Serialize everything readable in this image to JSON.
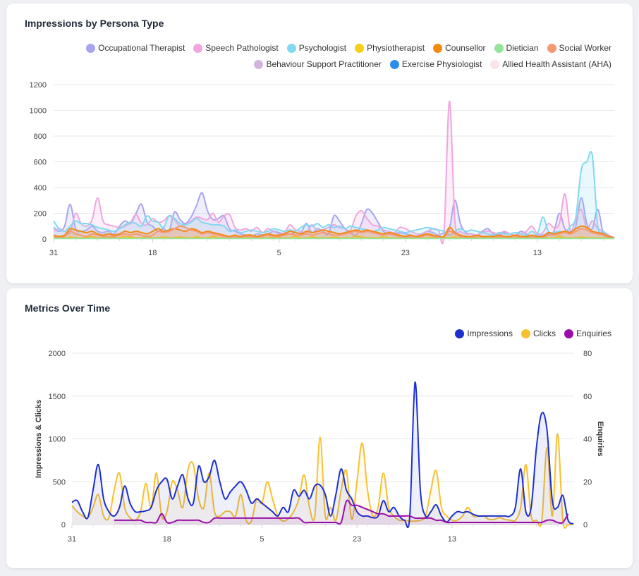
{
  "card1": {
    "title": "Impressions by Persona Type",
    "legend": [
      {
        "label": "Occupational Therapist",
        "color": "#a9a4ef"
      },
      {
        "label": "Speech Pathologist",
        "color": "#f0a6de"
      },
      {
        "label": "Psychologist",
        "color": "#82d8f1"
      },
      {
        "label": "Physiotherapist",
        "color": "#f6cf1a"
      },
      {
        "label": "Counsellor",
        "color": "#f38a10"
      },
      {
        "label": "Dietician",
        "color": "#94e59a"
      },
      {
        "label": "Social Worker",
        "color": "#f69873"
      },
      {
        "label": "Behaviour Support Practitioner",
        "color": "#d4b3df"
      },
      {
        "label": "Exercise Physiologist",
        "color": "#2e8de6"
      },
      {
        "label": "Allied Health Assistant (AHA)",
        "color": "#fce4e6"
      }
    ]
  },
  "card2": {
    "title": "Metrics Over Time",
    "legend": [
      {
        "label": "Impressions",
        "color": "#1d30d2"
      },
      {
        "label": "Clicks",
        "color": "#f7c131"
      },
      {
        "label": "Enquiries",
        "color": "#9b0ca8"
      }
    ]
  },
  "chart_data": [
    {
      "type": "area",
      "title": "Impressions by Persona Type",
      "x_ticks": [
        "31",
        "18",
        "5",
        "23",
        "13"
      ],
      "x_tick_index": [
        0,
        18,
        41,
        64,
        88
      ],
      "y_ticks": [
        0,
        200,
        400,
        600,
        800,
        1000,
        1200
      ],
      "ylim": [
        0,
        1200
      ],
      "grid": true,
      "legend_position": "top-right",
      "series": [
        {
          "name": "Occupational Therapist",
          "color": "#a9a4ef",
          "values": [
            90,
            60,
            100,
            270,
            80,
            60,
            70,
            100,
            60,
            50,
            60,
            40,
            100,
            140,
            120,
            200,
            270,
            130,
            100,
            60,
            80,
            60,
            210,
            150,
            120,
            170,
            260,
            360,
            220,
            150,
            160,
            180,
            80,
            60,
            40,
            30,
            20,
            40,
            30,
            40,
            60,
            50,
            40,
            40,
            50,
            50,
            120,
            50,
            80,
            60,
            40,
            180,
            140,
            80,
            50,
            30,
            120,
            230,
            200,
            130,
            60,
            40,
            40,
            50,
            40,
            30,
            20,
            40,
            60,
            50,
            30,
            50,
            80,
            300,
            120,
            50,
            40,
            30,
            60,
            80,
            40,
            30,
            50,
            40,
            30,
            60,
            40,
            20,
            30,
            30,
            40,
            60,
            200,
            80,
            60,
            100,
            320,
            120,
            80,
            230,
            40,
            20,
            10
          ]
        },
        {
          "name": "Speech Pathologist",
          "color": "#f0a6de",
          "values": [
            60,
            80,
            60,
            50,
            200,
            120,
            100,
            150,
            320,
            140,
            110,
            100,
            90,
            100,
            130,
            190,
            120,
            110,
            160,
            130,
            140,
            180,
            150,
            100,
            110,
            140,
            170,
            160,
            150,
            200,
            130,
            180,
            190,
            90,
            70,
            80,
            60,
            90,
            50,
            80,
            60,
            40,
            50,
            110,
            70,
            60,
            50,
            110,
            60,
            70,
            90,
            110,
            90,
            80,
            70,
            180,
            220,
            160,
            110,
            100,
            70,
            60,
            50,
            90,
            80,
            60,
            40,
            40,
            60,
            80,
            70,
            30,
            1070,
            140,
            60,
            40,
            40,
            30,
            50,
            60,
            50,
            40,
            60,
            40,
            30,
            40,
            60,
            100,
            40,
            50,
            120,
            90,
            120,
            350,
            70,
            150,
            230,
            80,
            140,
            80,
            60,
            30,
            10
          ]
        },
        {
          "name": "Psychologist",
          "color": "#82d8f1",
          "values": [
            140,
            80,
            60,
            100,
            140,
            120,
            120,
            110,
            90,
            80,
            70,
            60,
            80,
            110,
            130,
            120,
            100,
            180,
            140,
            130,
            90,
            180,
            160,
            120,
            110,
            130,
            160,
            130,
            120,
            110,
            110,
            100,
            60,
            70,
            50,
            60,
            70,
            60,
            50,
            60,
            80,
            70,
            60,
            70,
            60,
            90,
            110,
            100,
            120,
            90,
            110,
            90,
            100,
            80,
            100,
            90,
            80,
            70,
            60,
            70,
            90,
            80,
            70,
            60,
            50,
            60,
            70,
            80,
            90,
            80,
            70,
            60,
            30,
            60,
            80,
            60,
            70,
            60,
            50,
            40,
            30,
            50,
            40,
            40,
            50,
            40,
            30,
            60,
            40,
            170,
            60,
            50,
            60,
            50,
            100,
            170,
            540,
            600,
            650,
            100,
            60,
            20,
            10
          ]
        },
        {
          "name": "Physiotherapist",
          "color": "#f6cf1a",
          "values": [
            10,
            20,
            10,
            15,
            10,
            10,
            15,
            20,
            10,
            10,
            15,
            10,
            10,
            20,
            15,
            10,
            10,
            20,
            10,
            10,
            15,
            10,
            10,
            15,
            10,
            10,
            15,
            10,
            10,
            20,
            10,
            10,
            10,
            15,
            10,
            10,
            10,
            15,
            10,
            10,
            15,
            10,
            10,
            10,
            20,
            10,
            10,
            15,
            10,
            10,
            10,
            15,
            10,
            10,
            10,
            20,
            15,
            10,
            10,
            10,
            15,
            10,
            10,
            10,
            15,
            10,
            10,
            10,
            10,
            15,
            10,
            10,
            10,
            15,
            10,
            10,
            15,
            10,
            10,
            10,
            10,
            15,
            10,
            10,
            10,
            15,
            10,
            10,
            10,
            15,
            10,
            10,
            20,
            10,
            10,
            10,
            15,
            10,
            10,
            10,
            10,
            5,
            5
          ]
        },
        {
          "name": "Counsellor",
          "color": "#f38a10",
          "values": [
            30,
            20,
            30,
            80,
            70,
            60,
            50,
            60,
            40,
            30,
            40,
            30,
            40,
            60,
            50,
            60,
            50,
            40,
            60,
            80,
            60,
            70,
            80,
            70,
            60,
            80,
            70,
            50,
            60,
            50,
            40,
            30,
            20,
            30,
            20,
            30,
            30,
            20,
            30,
            40,
            30,
            30,
            40,
            60,
            50,
            40,
            60,
            50,
            60,
            70,
            60,
            50,
            40,
            50,
            60,
            70,
            60,
            70,
            60,
            50,
            40,
            50,
            40,
            30,
            20,
            30,
            20,
            30,
            40,
            30,
            20,
            20,
            90,
            50,
            30,
            20,
            20,
            30,
            20,
            20,
            20,
            30,
            20,
            20,
            30,
            20,
            20,
            30,
            20,
            20,
            50,
            40,
            50,
            60,
            50,
            80,
            100,
            90,
            60,
            50,
            40,
            20,
            10
          ]
        },
        {
          "name": "Social Worker",
          "color": "#f69873",
          "values": [
            20,
            10,
            20,
            60,
            40,
            30,
            20,
            40,
            30,
            20,
            20,
            20,
            30,
            40,
            30,
            40,
            30,
            20,
            30,
            60,
            50,
            60,
            80,
            100,
            90,
            70,
            60,
            40,
            50,
            40,
            30,
            20,
            10,
            20,
            10,
            20,
            20,
            10,
            20,
            30,
            20,
            20,
            30,
            40,
            30,
            30,
            40,
            30,
            40,
            50,
            40,
            30,
            30,
            40,
            50,
            60,
            50,
            60,
            50,
            40,
            30,
            40,
            30,
            20,
            10,
            20,
            10,
            20,
            30,
            20,
            10,
            10,
            60,
            40,
            20,
            10,
            10,
            20,
            10,
            10,
            10,
            20,
            10,
            10,
            20,
            10,
            10,
            20,
            10,
            10,
            30,
            30,
            40,
            50,
            40,
            60,
            80,
            70,
            50,
            40,
            30,
            10,
            5
          ]
        },
        {
          "name": "Dietician",
          "color": "#94e59a",
          "values": [
            5,
            5,
            5,
            5,
            5,
            5,
            5,
            5,
            5,
            5,
            5,
            5,
            5,
            5,
            5,
            5,
            5,
            5,
            5,
            5,
            5,
            5,
            5,
            5,
            5,
            5,
            5,
            5,
            5,
            5,
            5,
            5,
            5,
            5,
            5,
            5,
            5,
            5,
            5,
            5,
            5,
            5,
            5,
            5,
            5,
            5,
            5,
            5,
            5,
            5,
            5,
            5,
            5,
            5,
            5,
            5,
            5,
            5,
            5,
            5,
            5,
            5,
            5,
            5,
            5,
            5,
            5,
            5,
            5,
            5,
            5,
            5,
            5,
            5,
            5,
            5,
            5,
            5,
            5,
            5,
            5,
            5,
            5,
            5,
            5,
            5,
            5,
            5,
            5,
            5,
            5,
            5,
            5,
            5,
            5,
            5,
            5,
            5,
            5,
            5,
            5,
            5,
            5
          ]
        }
      ]
    },
    {
      "type": "line",
      "title": "Metrics Over Time",
      "x_ticks": [
        "31",
        "18",
        "5",
        "23",
        "13"
      ],
      "x_tick_index": [
        0,
        18,
        36,
        54,
        72
      ],
      "y_ticks_left": [
        0,
        500,
        1000,
        1500,
        2000
      ],
      "ylim_left": [
        0,
        2000
      ],
      "ylabel_left": "Impressions & Clicks",
      "y_ticks_right": [
        0,
        20,
        40,
        60,
        80
      ],
      "ylim_right": [
        0,
        80
      ],
      "ylabel_right": "Enquiries",
      "grid": true,
      "legend_position": "top-right",
      "series": [
        {
          "name": "Impressions",
          "color": "#1d30d2",
          "axis": "left",
          "values": [
            260,
            280,
            150,
            80,
            400,
            700,
            300,
            150,
            100,
            200,
            450,
            250,
            150,
            150,
            160,
            200,
            400,
            500,
            530,
            300,
            450,
            580,
            300,
            250,
            680,
            500,
            560,
            750,
            500,
            300,
            380,
            450,
            500,
            400,
            250,
            300,
            250,
            200,
            150,
            100,
            200,
            150,
            400,
            330,
            400,
            300,
            450,
            460,
            350,
            100,
            350,
            650,
            400,
            300,
            150,
            100,
            100,
            80,
            100,
            280,
            150,
            200,
            100,
            50,
            100,
            1660,
            400,
            100,
            150,
            230,
            100,
            30,
            100,
            150,
            140,
            150,
            120,
            100,
            100,
            100,
            100,
            100,
            100,
            100,
            200,
            650,
            150,
            200,
            900,
            1300,
            1100,
            280,
            200,
            340,
            50,
            10
          ]
        },
        {
          "name": "Clicks",
          "color": "#f7c131",
          "axis": "left",
          "values": [
            220,
            150,
            100,
            80,
            200,
            350,
            100,
            80,
            400,
            600,
            200,
            80,
            50,
            150,
            480,
            200,
            600,
            100,
            150,
            500,
            400,
            200,
            650,
            700,
            300,
            200,
            600,
            150,
            100,
            150,
            150,
            100,
            350,
            50,
            40,
            300,
            250,
            500,
            300,
            100,
            40,
            70,
            150,
            300,
            580,
            200,
            100,
            1020,
            100,
            200,
            50,
            400,
            630,
            60,
            500,
            950,
            400,
            100,
            200,
            600,
            200,
            100,
            50,
            50,
            40,
            40,
            50,
            100,
            400,
            630,
            200,
            100,
            50,
            50,
            100,
            200,
            100,
            100,
            100,
            60,
            60,
            80,
            60,
            50,
            50,
            200,
            700,
            100,
            50,
            40,
            900,
            100,
            1060,
            50,
            0,
            0
          ]
        },
        {
          "name": "Enquiries",
          "color": "#9b0ca8",
          "axis": "right",
          "values": [
            null,
            null,
            null,
            null,
            null,
            null,
            null,
            null,
            2,
            2,
            2,
            2,
            2,
            2,
            1,
            1,
            1,
            5,
            1,
            1,
            2,
            2,
            2,
            2,
            2,
            1,
            1,
            3,
            3,
            3,
            3,
            3,
            3,
            3,
            3,
            3,
            3,
            3,
            3,
            3,
            3,
            3,
            3,
            3,
            1,
            1,
            1,
            1,
            1,
            1,
            1,
            1,
            11,
            9,
            9,
            8,
            7,
            6,
            5,
            5,
            4,
            4,
            4,
            4,
            4,
            3,
            3,
            3,
            3,
            2,
            2,
            1,
            1,
            1,
            1,
            1,
            1,
            1,
            1,
            1,
            1,
            1,
            1,
            1,
            1,
            1,
            1,
            1,
            1,
            1,
            2,
            2,
            1,
            1,
            5,
            null
          ]
        }
      ]
    }
  ]
}
